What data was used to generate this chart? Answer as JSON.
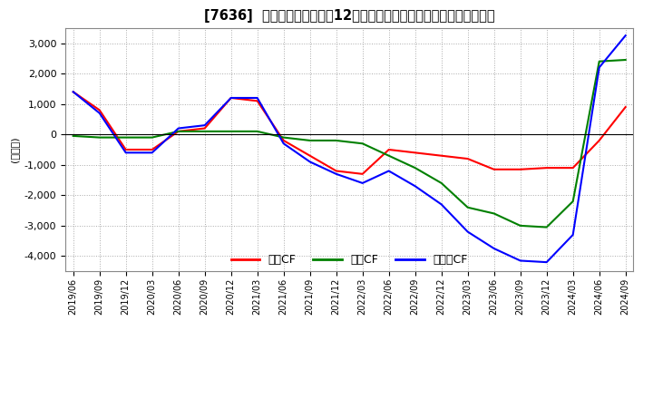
{
  "title": "[7636]  キャッシュフローの12か月移動合計の対前年同期増減額の推移",
  "ylabel": "(百万円)",
  "ylim": [
    -4500,
    3500
  ],
  "yticks": [
    -4000,
    -3000,
    -2000,
    -1000,
    0,
    1000,
    2000,
    3000
  ],
  "legend": [
    "営業CF",
    "投資CF",
    "フリーCF"
  ],
  "legend_colors": [
    "#ff0000",
    "#008000",
    "#0000ff"
  ],
  "dates": [
    "2019/06",
    "2019/09",
    "2019/12",
    "2020/03",
    "2020/06",
    "2020/09",
    "2020/12",
    "2021/03",
    "2021/06",
    "2021/09",
    "2021/12",
    "2022/03",
    "2022/06",
    "2022/09",
    "2022/12",
    "2023/03",
    "2023/06",
    "2023/09",
    "2023/12",
    "2024/03",
    "2024/06",
    "2024/09"
  ],
  "eiCF": [
    1400,
    800,
    -500,
    -500,
    100,
    200,
    1200,
    1100,
    -200,
    -700,
    -1200,
    -1300,
    -500,
    -600,
    -700,
    -800,
    -1150,
    -1150,
    -1100,
    -1100,
    -200,
    900
  ],
  "toCF": [
    -50,
    -100,
    -100,
    -100,
    100,
    100,
    100,
    100,
    -100,
    -200,
    -200,
    -300,
    -700,
    -1100,
    -1600,
    -2400,
    -2600,
    -3000,
    -3050,
    -2200,
    2400,
    2450
  ],
  "frCF": [
    1400,
    700,
    -600,
    -600,
    200,
    300,
    1200,
    1200,
    -300,
    -900,
    -1300,
    -1600,
    -1200,
    -1700,
    -2300,
    -3200,
    -3750,
    -4150,
    -4200,
    -3300,
    2200,
    3250
  ]
}
